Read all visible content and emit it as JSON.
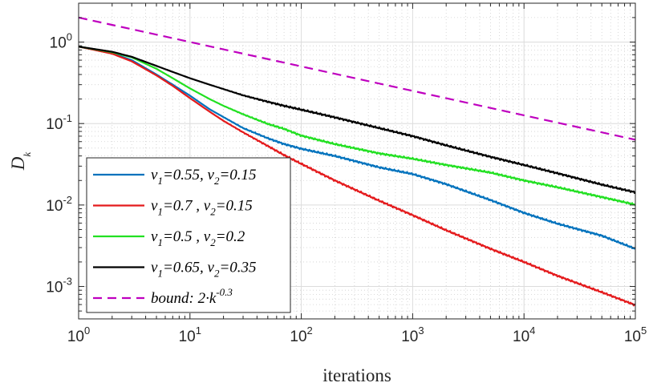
{
  "chart_data": {
    "type": "line",
    "scale": "log-log",
    "xlabel": "iterations",
    "ylabel": "D",
    "ylabel_sub": "k",
    "xlim": [
      1,
      100000
    ],
    "ylim": [
      0.0004,
      3
    ],
    "grid": true,
    "legend_position": "lower-left",
    "x_ticks": [
      {
        "value": 1,
        "base": "10",
        "exp": "0"
      },
      {
        "value": 10,
        "base": "10",
        "exp": "1"
      },
      {
        "value": 100,
        "base": "10",
        "exp": "2"
      },
      {
        "value": 1000,
        "base": "10",
        "exp": "3"
      },
      {
        "value": 10000,
        "base": "10",
        "exp": "4"
      },
      {
        "value": 100000,
        "base": "10",
        "exp": "5"
      }
    ],
    "y_ticks": [
      {
        "value": 0.001,
        "base": "10",
        "exp": "-3"
      },
      {
        "value": 0.01,
        "base": "10",
        "exp": "-2"
      },
      {
        "value": 0.1,
        "base": "10",
        "exp": "-1"
      },
      {
        "value": 1,
        "base": "10",
        "exp": "0"
      }
    ],
    "series": [
      {
        "name": "ν1=0.55, ν2=0.15",
        "label_parts": [
          "ν",
          "1",
          "=0.55, ",
          "ν",
          "2",
          "=0.15"
        ],
        "color": "#0072BD",
        "dashed": false,
        "x": [
          1,
          2,
          3,
          5,
          7,
          10,
          15,
          20,
          30,
          50,
          70,
          100,
          200,
          500,
          1000,
          2000,
          5000,
          10000,
          20000,
          50000,
          100000
        ],
        "y": [
          0.88,
          0.73,
          0.6,
          0.4,
          0.3,
          0.22,
          0.15,
          0.12,
          0.088,
          0.066,
          0.056,
          0.049,
          0.04,
          0.029,
          0.024,
          0.018,
          0.0115,
          0.008,
          0.0059,
          0.0042,
          0.0029
        ]
      },
      {
        "name": "ν1=0.7 ,  ν2=0.15",
        "label_parts": [
          "ν",
          "1",
          "=0.7 ,  ",
          "ν",
          "2",
          "=0.15"
        ],
        "color": "#E41A1C",
        "dashed": false,
        "x": [
          1,
          2,
          3,
          5,
          7,
          10,
          15,
          20,
          30,
          50,
          70,
          100,
          200,
          500,
          1000,
          2000,
          5000,
          10000,
          20000,
          50000,
          100000
        ],
        "y": [
          0.88,
          0.72,
          0.58,
          0.39,
          0.29,
          0.205,
          0.14,
          0.108,
          0.078,
          0.053,
          0.041,
          0.032,
          0.02,
          0.0113,
          0.0075,
          0.0049,
          0.0029,
          0.002,
          0.00135,
          0.00085,
          0.00059
        ]
      },
      {
        "name": "ν1=0.5 ,  ν2=0.2",
        "label_parts": [
          "ν",
          "1",
          "=0.5 ,  ",
          "ν",
          "2",
          "=0.2"
        ],
        "color": "#22E022",
        "dashed": false,
        "x": [
          1,
          2,
          3,
          5,
          7,
          10,
          15,
          20,
          30,
          50,
          70,
          100,
          200,
          500,
          1000,
          2000,
          5000,
          10000,
          20000,
          50000,
          100000
        ],
        "y": [
          0.88,
          0.75,
          0.65,
          0.47,
          0.36,
          0.27,
          0.2,
          0.165,
          0.13,
          0.099,
          0.086,
          0.071,
          0.056,
          0.043,
          0.037,
          0.031,
          0.025,
          0.02,
          0.0165,
          0.0125,
          0.0101
        ]
      },
      {
        "name": "ν1=0.65, ν2=0.35",
        "label_parts": [
          "ν",
          "1",
          "=0.65, ",
          "ν",
          "2",
          "=0.35"
        ],
        "color": "#000000",
        "dashed": false,
        "x": [
          1,
          2,
          3,
          5,
          7,
          10,
          15,
          20,
          30,
          50,
          70,
          100,
          200,
          500,
          1000,
          2000,
          5000,
          10000,
          20000,
          50000,
          100000
        ],
        "y": [
          0.88,
          0.76,
          0.66,
          0.51,
          0.43,
          0.36,
          0.3,
          0.265,
          0.222,
          0.185,
          0.165,
          0.148,
          0.119,
          0.088,
          0.07,
          0.054,
          0.039,
          0.031,
          0.0245,
          0.0178,
          0.0143
        ]
      },
      {
        "name": "bound: 2·k^-0.3",
        "label_parts": [
          "bound: 2·k",
          "-0.3"
        ],
        "color": "#BF00BF",
        "dashed": true,
        "formula": {
          "a": 2,
          "p": -0.3
        }
      }
    ]
  }
}
